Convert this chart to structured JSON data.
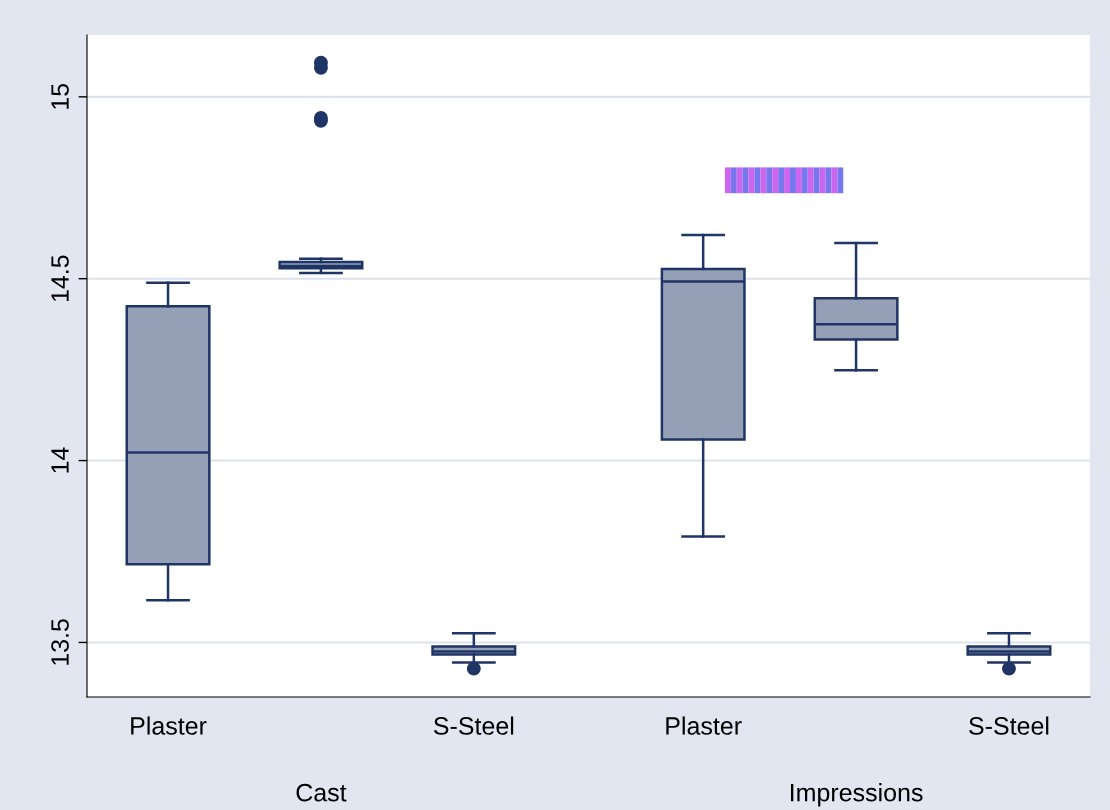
{
  "chart_data": {
    "type": "box",
    "categories": [
      "Plaster",
      null,
      "S-Steel",
      "Plaster",
      null,
      "S-Steel"
    ],
    "boxes": [
      {
        "low": 13.616,
        "q1": 13.715,
        "median": 14.022,
        "q3": 14.424,
        "high": 14.489
      },
      {
        "low": 14.516,
        "q1": 14.529,
        "median": 14.535,
        "q3": 14.546,
        "high": 14.555,
        "outliers": [
          15.094,
          15.08,
          14.942,
          14.934
        ]
      },
      {
        "low": 13.445,
        "q1": 13.467,
        "median": 13.475,
        "q3": 13.489,
        "high": 13.525,
        "outliers": [
          13.428
        ]
      },
      {
        "low": 13.791,
        "q1": 14.058,
        "median": 14.492,
        "q3": 14.527,
        "high": 14.62
      },
      {
        "low": 14.248,
        "q1": 14.333,
        "median": 14.375,
        "q3": 14.446,
        "high": 14.598
      },
      {
        "low": 13.445,
        "q1": 13.467,
        "median": 13.475,
        "q3": 13.489,
        "high": 13.525,
        "outliers": [
          13.428
        ]
      }
    ],
    "color": "#95a0b6",
    "annotations": [
      "Cast",
      "Impressions"
    ],
    "ylim": [
      13.35,
      15.17
    ],
    "yticks": [
      13.5,
      14,
      14.5,
      15
    ],
    "grid": "y"
  }
}
